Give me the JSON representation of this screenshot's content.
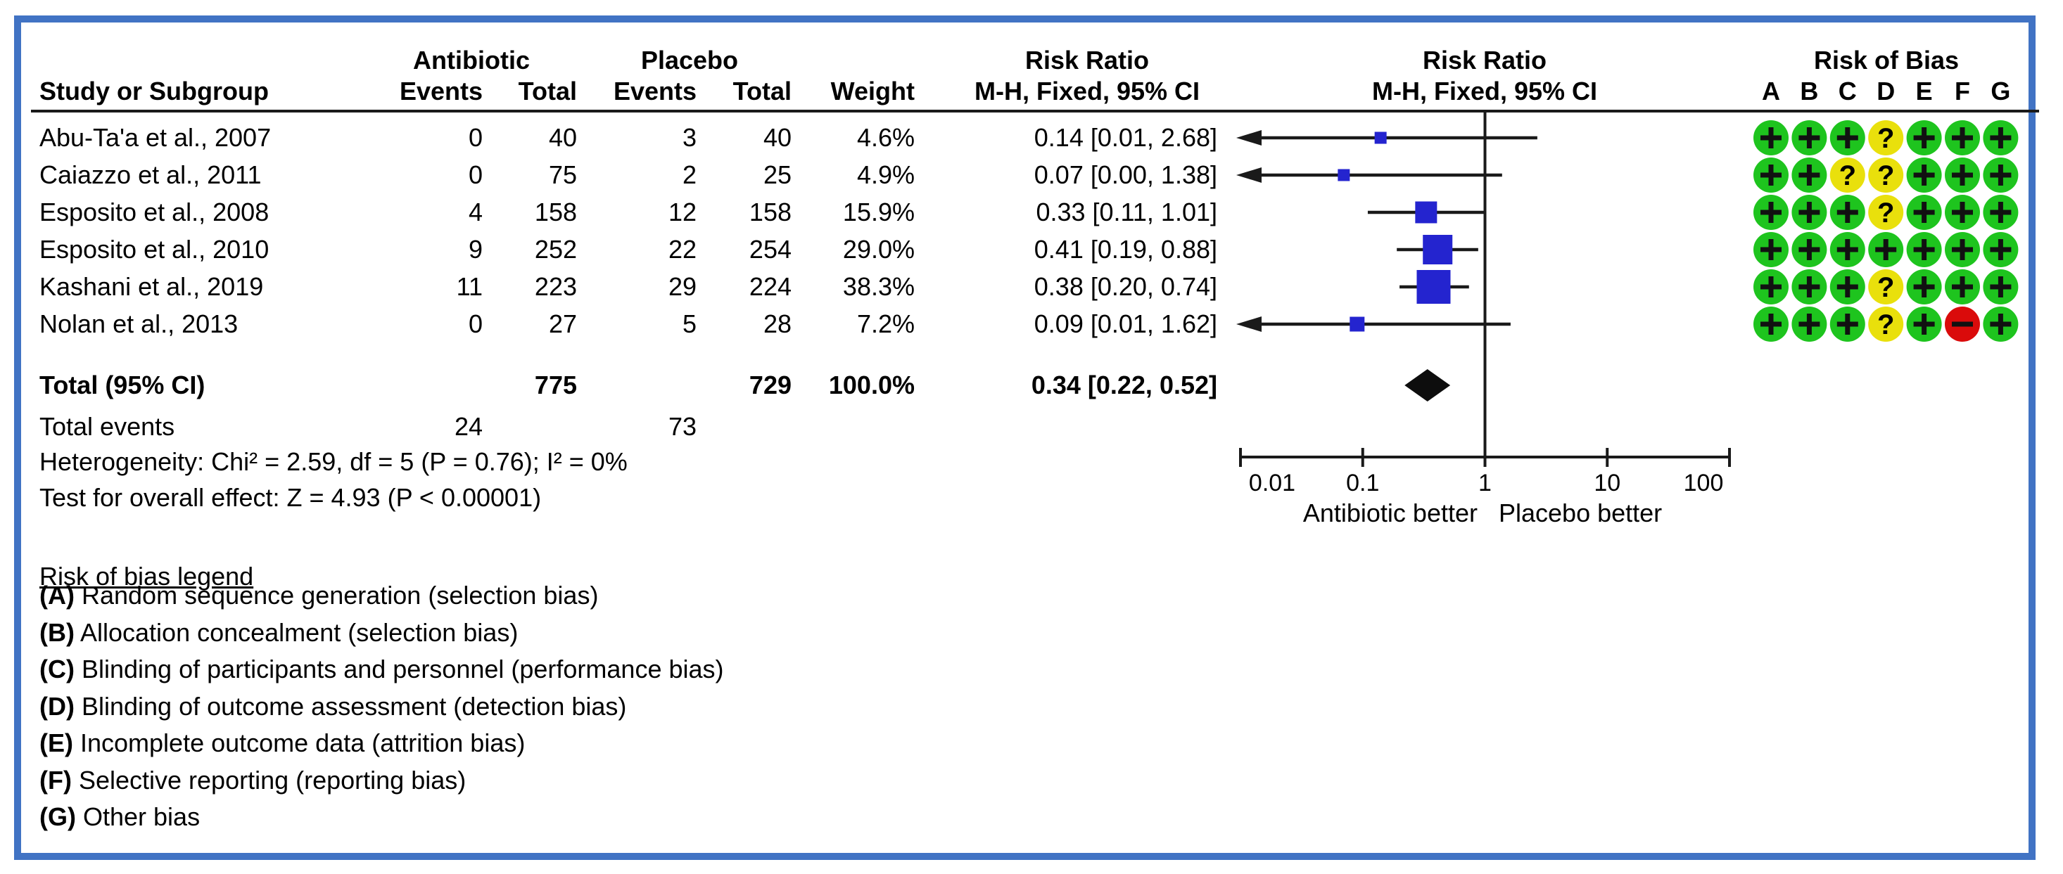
{
  "table": {
    "header": {
      "col_study": "Study or Subgroup",
      "group1": "Antibiotic",
      "group2": "Placebo",
      "col_events": "Events",
      "col_total": "Total",
      "col_weight": "Weight",
      "rr_text_title": "Risk Ratio",
      "rr_text_sub": "M-H, Fixed, 95% CI",
      "rr_plot_title": "Risk Ratio",
      "rr_plot_sub": "M-H, Fixed, 95% CI",
      "rob_title": "Risk of Bias",
      "rob_cols": [
        "A",
        "B",
        "C",
        "D",
        "E",
        "F",
        "G"
      ]
    },
    "rows": [
      {
        "study": "Abu-Ta'a et al., 2007",
        "events1": "0",
        "total1": "40",
        "events2": "3",
        "total2": "40",
        "weight": "4.6%",
        "rr": "0.14 [0.01, 2.68]"
      },
      {
        "study": "Caiazzo et al., 2011",
        "events1": "0",
        "total1": "75",
        "events2": "2",
        "total2": "25",
        "weight": "4.9%",
        "rr": "0.07 [0.00, 1.38]"
      },
      {
        "study": "Esposito et al., 2008",
        "events1": "4",
        "total1": "158",
        "events2": "12",
        "total2": "158",
        "weight": "15.9%",
        "rr": "0.33 [0.11, 1.01]"
      },
      {
        "study": "Esposito et al., 2010",
        "events1": "9",
        "total1": "252",
        "events2": "22",
        "total2": "254",
        "weight": "29.0%",
        "rr": "0.41 [0.19, 0.88]"
      },
      {
        "study": "Kashani et al., 2019",
        "events1": "11",
        "total1": "223",
        "events2": "29",
        "total2": "224",
        "weight": "38.3%",
        "rr": "0.38 [0.20, 0.74]"
      },
      {
        "study": "Nolan et al., 2013",
        "events1": "0",
        "total1": "27",
        "events2": "5",
        "total2": "28",
        "weight": "7.2%",
        "rr": "0.09 [0.01, 1.62]"
      }
    ],
    "total_row": {
      "label": "Total (95% CI)",
      "total1": "775",
      "total2": "729",
      "weight": "100.0%",
      "rr": "0.34 [0.22, 0.52]"
    },
    "total_events": {
      "label": "Total events",
      "events1": "24",
      "events2": "73"
    },
    "heterogeneity": "Heterogeneity: Chi² = 2.59, df = 5 (P = 0.76); I² = 0%",
    "overall_effect": "Test for overall effect: Z = 4.93 (P < 0.00001)"
  },
  "legend": {
    "title": "Risk of bias legend",
    "items": [
      {
        "key": "(A)",
        "text": "Random sequence generation (selection bias)"
      },
      {
        "key": "(B)",
        "text": "Allocation concealment (selection bias)"
      },
      {
        "key": "(C)",
        "text": "Blinding of participants and personnel (performance bias)"
      },
      {
        "key": "(D)",
        "text": "Blinding of outcome assessment (detection bias)"
      },
      {
        "key": "(E)",
        "text": "Incomplete outcome data (attrition bias)"
      },
      {
        "key": "(F)",
        "text": "Selective reporting (reporting bias)"
      },
      {
        "key": "(G)",
        "text": "Other bias"
      }
    ]
  },
  "chart_data": {
    "type": "forest",
    "effect_measure": "Risk Ratio, M-H, Fixed, 95% CI",
    "x_scale": "log10",
    "x_range": [
      0.01,
      100
    ],
    "x_ticks": [
      0.01,
      0.1,
      1,
      10,
      100
    ],
    "x_tick_labels": [
      "0.01",
      "0.1",
      "1",
      "10",
      "100"
    ],
    "null_line": 1,
    "label_left": "Antibiotic better",
    "label_right": "Placebo better",
    "studies": [
      {
        "name": "Abu-Ta'a et al., 2007",
        "rr": 0.14,
        "ci_low": 0.01,
        "ci_high": 2.68,
        "weight_pct": 4.6,
        "arrow_left": true,
        "risk_of_bias": [
          "+",
          "+",
          "+",
          "?",
          "+",
          "+",
          "+"
        ]
      },
      {
        "name": "Caiazzo et al., 2011",
        "rr": 0.07,
        "ci_low": 0.0,
        "ci_high": 1.38,
        "weight_pct": 4.9,
        "arrow_left": true,
        "risk_of_bias": [
          "+",
          "+",
          "?",
          "?",
          "+",
          "+",
          "+"
        ]
      },
      {
        "name": "Esposito et al., 2008",
        "rr": 0.33,
        "ci_low": 0.11,
        "ci_high": 1.01,
        "weight_pct": 15.9,
        "arrow_left": false,
        "risk_of_bias": [
          "+",
          "+",
          "+",
          "?",
          "+",
          "+",
          "+"
        ]
      },
      {
        "name": "Esposito et al., 2010",
        "rr": 0.41,
        "ci_low": 0.19,
        "ci_high": 0.88,
        "weight_pct": 29.0,
        "arrow_left": false,
        "risk_of_bias": [
          "+",
          "+",
          "+",
          "+",
          "+",
          "+",
          "+"
        ]
      },
      {
        "name": "Kashani et al., 2019",
        "rr": 0.38,
        "ci_low": 0.2,
        "ci_high": 0.74,
        "weight_pct": 38.3,
        "arrow_left": false,
        "risk_of_bias": [
          "+",
          "+",
          "+",
          "?",
          "+",
          "+",
          "+"
        ]
      },
      {
        "name": "Nolan et al., 2013",
        "rr": 0.09,
        "ci_low": 0.01,
        "ci_high": 1.62,
        "weight_pct": 7.2,
        "arrow_left": true,
        "risk_of_bias": [
          "+",
          "+",
          "+",
          "?",
          "+",
          "-",
          "+"
        ]
      }
    ],
    "total": {
      "label": "Total (95% CI)",
      "rr": 0.34,
      "ci_low": 0.22,
      "ci_high": 0.52,
      "weight_pct": 100.0
    }
  },
  "colors": {
    "frame_border": "#4173c4",
    "marker_blue": "#2424cf",
    "rob_green": "#1ec41e",
    "rob_yellow": "#e9e00c",
    "rob_red": "#da0b0b",
    "line_black": "#1a1a1a"
  }
}
